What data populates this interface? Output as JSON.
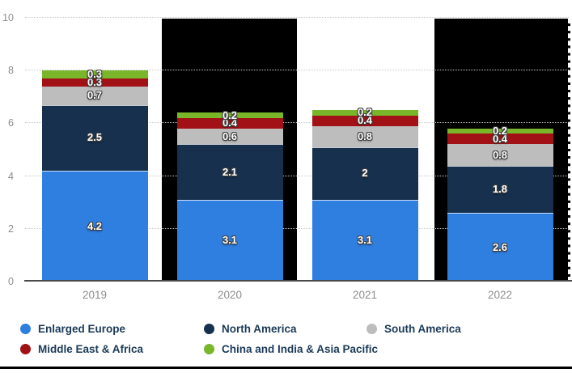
{
  "chart_data": {
    "type": "bar",
    "stacked": true,
    "title": "",
    "xlabel": "",
    "ylabel": "",
    "ylim": [
      0,
      10
    ],
    "yticks": [
      0,
      2,
      4,
      6,
      8,
      10
    ],
    "grid": "horizontal-dotted",
    "legend_position": "bottom",
    "categories": [
      "2019",
      "2020",
      "2021",
      "2022"
    ],
    "series": [
      {
        "name": "Enlarged Europe",
        "color": "#2f7fe0",
        "values": [
          4.2,
          3.1,
          3.1,
          2.6
        ],
        "labels": [
          "4.2",
          "3.1",
          "3.1",
          "2.6"
        ]
      },
      {
        "name": "North America",
        "color": "#16304e",
        "values": [
          2.5,
          2.1,
          2.0,
          1.8
        ],
        "labels": [
          "2.5",
          "2.1",
          "2",
          "1.8"
        ]
      },
      {
        "name": "South America",
        "color": "#bdbdbd",
        "values": [
          0.7,
          0.6,
          0.8,
          0.8
        ],
        "labels": [
          "0.7",
          "0.6",
          "0.8",
          "0.8"
        ]
      },
      {
        "name": "Middle East & Africa",
        "color": "#a21115",
        "values": [
          0.3,
          0.4,
          0.4,
          0.4
        ],
        "labels": [
          "0.3",
          "0.4",
          "0.4",
          "0.4"
        ]
      },
      {
        "name": "China and India & Asia Pacific",
        "color": "#7ab629",
        "values": [
          0.3,
          0.2,
          0.2,
          0.2
        ],
        "labels": [
          "0.3",
          "0.2",
          "0.2",
          "0.2"
        ]
      }
    ]
  },
  "axes": {
    "y_ticks": [
      "0",
      "2",
      "4",
      "6",
      "8",
      "10"
    ],
    "x_ticks": [
      "2019",
      "2020",
      "2021",
      "2022"
    ]
  },
  "legend": {
    "items": [
      {
        "label": "Enlarged Europe",
        "color": "#2f7fe0",
        "row": 0,
        "col": 0
      },
      {
        "label": "North America",
        "color": "#16304e",
        "row": 0,
        "col": 1
      },
      {
        "label": "South America",
        "color": "#bdbdbd",
        "row": 0,
        "col": 2
      },
      {
        "label": "Middle East & Africa",
        "color": "#a21115",
        "row": 1,
        "col": 0
      },
      {
        "label": "China and India & Asia Pacific",
        "color": "#7ab629",
        "row": 1,
        "col": 1
      }
    ]
  },
  "colors": {
    "grid": "#c9c9c9",
    "axis_line": "#4a4a4a",
    "tick_label": "#8d8d8d",
    "legend_text": "#1b3a57",
    "value_label": "#ffffff",
    "redaction": "#000000"
  }
}
